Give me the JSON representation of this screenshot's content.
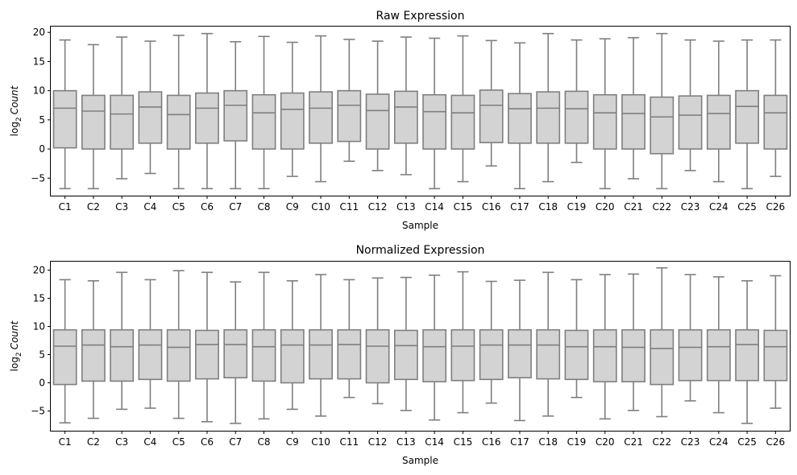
{
  "chart_data": [
    {
      "type": "box",
      "title": "Raw Expression",
      "xlabel": "Sample",
      "ylabel_base": "log",
      "ylabel_sub": "2",
      "ylabel_var": "Count",
      "ylim": [
        -8,
        21
      ],
      "yticks": [
        -5,
        0,
        5,
        10,
        15,
        20
      ],
      "categories": [
        "C1",
        "C2",
        "C3",
        "C4",
        "C5",
        "C6",
        "C7",
        "C8",
        "C9",
        "C10",
        "C11",
        "C12",
        "C13",
        "C14",
        "C15",
        "C16",
        "C17",
        "C18",
        "C19",
        "C20",
        "C21",
        "C22",
        "C23",
        "C24",
        "C25",
        "C26"
      ],
      "boxes": [
        {
          "min": -6.8,
          "q1": 0.2,
          "median": 7.0,
          "q3": 10.0,
          "max": 18.7
        },
        {
          "min": -6.8,
          "q1": 0.0,
          "median": 6.5,
          "q3": 9.2,
          "max": 17.9
        },
        {
          "min": -5.1,
          "q1": 0.0,
          "median": 6.0,
          "q3": 9.2,
          "max": 19.2
        },
        {
          "min": -4.2,
          "q1": 1.0,
          "median": 7.2,
          "q3": 9.8,
          "max": 18.5
        },
        {
          "min": -6.8,
          "q1": 0.0,
          "median": 5.9,
          "q3": 9.2,
          "max": 19.5
        },
        {
          "min": -6.8,
          "q1": 1.0,
          "median": 7.0,
          "q3": 9.6,
          "max": 19.8
        },
        {
          "min": -6.8,
          "q1": 1.4,
          "median": 7.5,
          "q3": 10.0,
          "max": 18.4
        },
        {
          "min": -6.8,
          "q1": 0.0,
          "median": 6.2,
          "q3": 9.3,
          "max": 19.3
        },
        {
          "min": -4.7,
          "q1": 0.0,
          "median": 6.8,
          "q3": 9.6,
          "max": 18.3
        },
        {
          "min": -5.6,
          "q1": 1.0,
          "median": 7.0,
          "q3": 9.8,
          "max": 19.4
        },
        {
          "min": -2.1,
          "q1": 1.3,
          "median": 7.5,
          "q3": 10.0,
          "max": 18.8
        },
        {
          "min": -3.7,
          "q1": 0.0,
          "median": 6.6,
          "q3": 9.4,
          "max": 18.5
        },
        {
          "min": -4.4,
          "q1": 1.0,
          "median": 7.2,
          "q3": 9.9,
          "max": 19.2
        },
        {
          "min": -6.8,
          "q1": 0.0,
          "median": 6.4,
          "q3": 9.3,
          "max": 19.0
        },
        {
          "min": -5.6,
          "q1": 0.0,
          "median": 6.2,
          "q3": 9.2,
          "max": 19.4
        },
        {
          "min": -2.9,
          "q1": 1.1,
          "median": 7.5,
          "q3": 10.1,
          "max": 18.6
        },
        {
          "min": -6.8,
          "q1": 1.0,
          "median": 6.9,
          "q3": 9.5,
          "max": 18.2
        },
        {
          "min": -5.6,
          "q1": 1.0,
          "median": 7.0,
          "q3": 9.8,
          "max": 19.8
        },
        {
          "min": -2.3,
          "q1": 1.0,
          "median": 6.9,
          "q3": 9.9,
          "max": 18.7
        },
        {
          "min": -6.8,
          "q1": 0.0,
          "median": 6.2,
          "q3": 9.3,
          "max": 18.9
        },
        {
          "min": -5.1,
          "q1": 0.0,
          "median": 6.1,
          "q3": 9.3,
          "max": 19.1
        },
        {
          "min": -6.8,
          "q1": -0.8,
          "median": 5.5,
          "q3": 8.9,
          "max": 19.8
        },
        {
          "min": -3.7,
          "q1": 0.0,
          "median": 5.8,
          "q3": 9.1,
          "max": 18.7
        },
        {
          "min": -5.6,
          "q1": 0.0,
          "median": 6.1,
          "q3": 9.2,
          "max": 18.5
        },
        {
          "min": -6.8,
          "q1": 1.0,
          "median": 7.3,
          "q3": 10.0,
          "max": 18.7
        },
        {
          "min": -4.7,
          "q1": 0.0,
          "median": 6.2,
          "q3": 9.2,
          "max": 18.7
        }
      ]
    },
    {
      "type": "box",
      "title": "Normalized Expression",
      "xlabel": "Sample",
      "ylabel_base": "log",
      "ylabel_sub": "2",
      "ylabel_var": "Count",
      "ylim": [
        -8.5,
        21.5
      ],
      "yticks": [
        -5,
        0,
        5,
        10,
        15,
        20
      ],
      "categories": [
        "C1",
        "C2",
        "C3",
        "C4",
        "C5",
        "C6",
        "C7",
        "C8",
        "C9",
        "C10",
        "C11",
        "C12",
        "C13",
        "C14",
        "C15",
        "C16",
        "C17",
        "C18",
        "C19",
        "C20",
        "C21",
        "C22",
        "C23",
        "C24",
        "C25",
        "C26"
      ],
      "boxes": [
        {
          "min": -7.1,
          "q1": -0.3,
          "median": 6.5,
          "q3": 9.4,
          "max": 18.3
        },
        {
          "min": -6.3,
          "q1": 0.3,
          "median": 6.7,
          "q3": 9.4,
          "max": 18.1
        },
        {
          "min": -4.7,
          "q1": 0.3,
          "median": 6.4,
          "q3": 9.4,
          "max": 19.6
        },
        {
          "min": -4.5,
          "q1": 0.6,
          "median": 6.7,
          "q3": 9.4,
          "max": 18.3
        },
        {
          "min": -6.3,
          "q1": 0.3,
          "median": 6.3,
          "q3": 9.4,
          "max": 19.9
        },
        {
          "min": -6.9,
          "q1": 0.7,
          "median": 6.8,
          "q3": 9.3,
          "max": 19.6
        },
        {
          "min": -7.2,
          "q1": 0.9,
          "median": 6.8,
          "q3": 9.4,
          "max": 17.9
        },
        {
          "min": -6.4,
          "q1": 0.3,
          "median": 6.4,
          "q3": 9.4,
          "max": 19.6
        },
        {
          "min": -4.7,
          "q1": 0.0,
          "median": 6.7,
          "q3": 9.4,
          "max": 18.1
        },
        {
          "min": -5.9,
          "q1": 0.7,
          "median": 6.7,
          "q3": 9.4,
          "max": 19.2
        },
        {
          "min": -2.6,
          "q1": 0.7,
          "median": 6.8,
          "q3": 9.4,
          "max": 18.3
        },
        {
          "min": -3.7,
          "q1": 0.0,
          "median": 6.5,
          "q3": 9.4,
          "max": 18.6
        },
        {
          "min": -4.9,
          "q1": 0.6,
          "median": 6.6,
          "q3": 9.3,
          "max": 18.7
        },
        {
          "min": -6.6,
          "q1": 0.2,
          "median": 6.4,
          "q3": 9.4,
          "max": 19.1
        },
        {
          "min": -5.3,
          "q1": 0.4,
          "median": 6.5,
          "q3": 9.4,
          "max": 19.7
        },
        {
          "min": -3.6,
          "q1": 0.6,
          "median": 6.7,
          "q3": 9.4,
          "max": 18.0
        },
        {
          "min": -6.7,
          "q1": 0.9,
          "median": 6.7,
          "q3": 9.4,
          "max": 18.2
        },
        {
          "min": -5.9,
          "q1": 0.7,
          "median": 6.7,
          "q3": 9.4,
          "max": 19.6
        },
        {
          "min": -2.6,
          "q1": 0.6,
          "median": 6.4,
          "q3": 9.3,
          "max": 18.3
        },
        {
          "min": -6.4,
          "q1": 0.2,
          "median": 6.4,
          "q3": 9.4,
          "max": 19.2
        },
        {
          "min": -4.9,
          "q1": 0.2,
          "median": 6.3,
          "q3": 9.4,
          "max": 19.3
        },
        {
          "min": -6.0,
          "q1": -0.3,
          "median": 6.1,
          "q3": 9.4,
          "max": 20.4
        },
        {
          "min": -3.2,
          "q1": 0.4,
          "median": 6.3,
          "q3": 9.4,
          "max": 19.2
        },
        {
          "min": -5.3,
          "q1": 0.4,
          "median": 6.4,
          "q3": 9.4,
          "max": 18.8
        },
        {
          "min": -7.2,
          "q1": 0.4,
          "median": 6.8,
          "q3": 9.4,
          "max": 18.1
        },
        {
          "min": -4.5,
          "q1": 0.4,
          "median": 6.4,
          "q3": 9.3,
          "max": 19.0
        }
      ]
    }
  ],
  "colors": {
    "box_fill": "#d3d3d3",
    "box_edge": "#7f7f7f",
    "axis": "#000000",
    "background": "#ffffff"
  }
}
